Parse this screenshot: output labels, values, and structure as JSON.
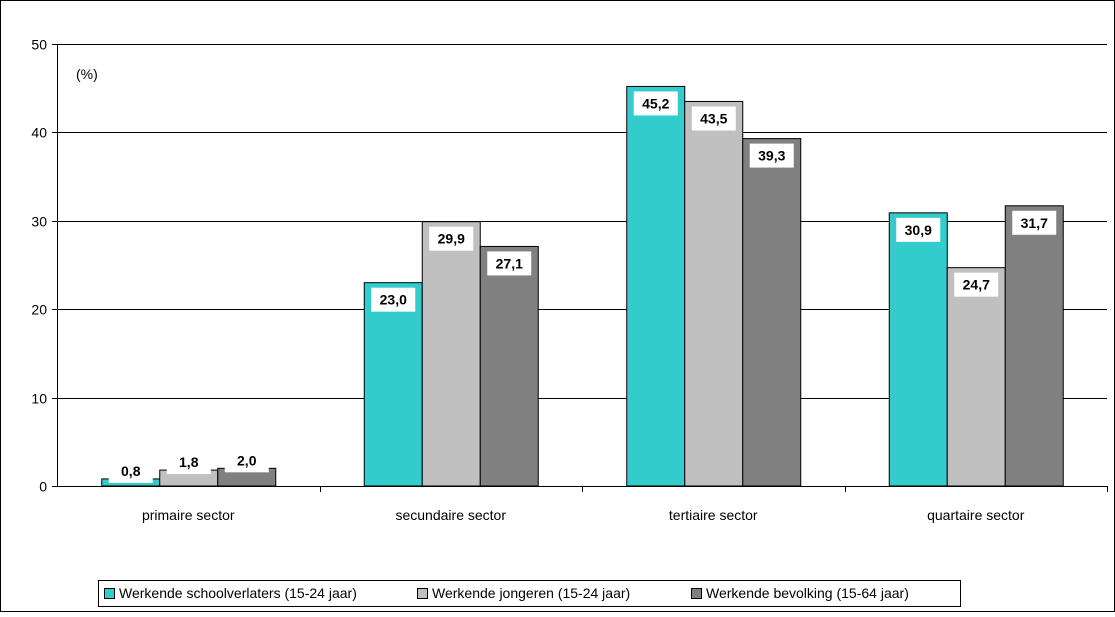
{
  "chart_data": {
    "type": "bar",
    "unit_label": "(%)",
    "categories": [
      "primaire sector",
      "secundaire sector",
      "tertiaire sector",
      "quartaire sector"
    ],
    "series": [
      {
        "name": "Werkende schoolverlaters (15-24 jaar)",
        "color": "#33CCCC",
        "values": [
          0.8,
          23.0,
          45.2,
          30.9
        ],
        "labels": [
          "0,8",
          "23,0",
          "45,2",
          "30,9"
        ]
      },
      {
        "name": "Werkende jongeren (15-24 jaar)",
        "color": "#C0C0C0",
        "values": [
          1.8,
          29.9,
          43.5,
          24.7
        ],
        "labels": [
          "1,8",
          "29,9",
          "43,5",
          "24,7"
        ]
      },
      {
        "name": "Werkende bevolking (15-64 jaar)",
        "color": "#808080",
        "values": [
          2.0,
          27.1,
          39.3,
          31.7
        ],
        "labels": [
          "2,0",
          "27,1",
          "39,3",
          "31,7"
        ]
      }
    ],
    "yticks": [
      "0",
      "10",
      "20",
      "30",
      "40",
      "50"
    ],
    "ylim": [
      0,
      50
    ],
    "grid": true,
    "legend_position": "bottom-left"
  }
}
